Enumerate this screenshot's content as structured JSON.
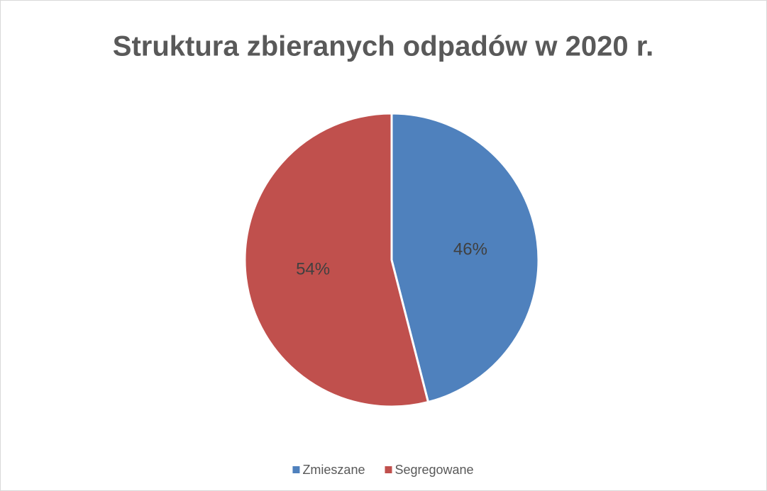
{
  "chart_data": {
    "type": "pie",
    "title": "Struktura zbieranych odpadów w 2020 r.",
    "categories": [
      "Zmieszane",
      "Segregowane"
    ],
    "values": [
      46,
      54
    ],
    "value_labels": [
      "46%",
      "54%"
    ],
    "colors": [
      "#4f81bd",
      "#c0504d"
    ],
    "legend": "bottom"
  }
}
